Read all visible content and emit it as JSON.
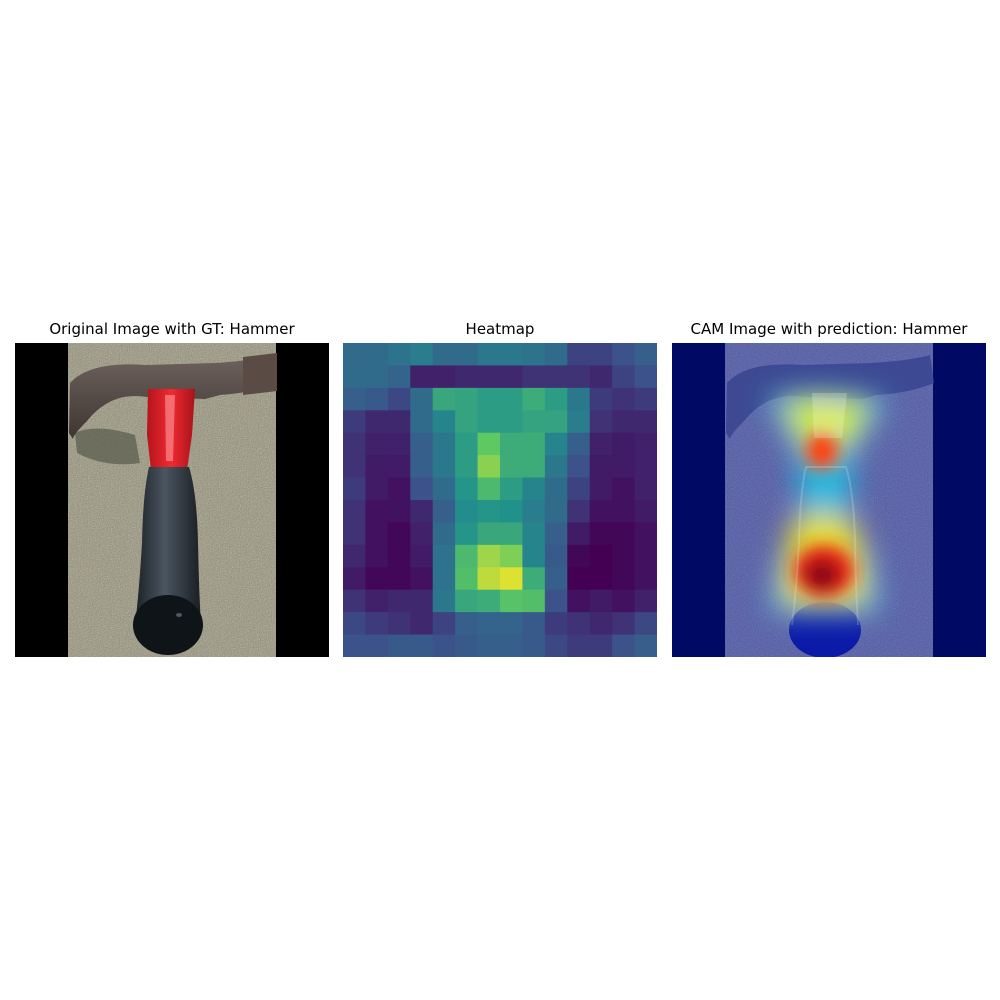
{
  "panels": [
    {
      "title": "Original Image with GT: Hammer"
    },
    {
      "title": "Heatmap"
    },
    {
      "title": "CAM Image with prediction: Hammer"
    }
  ],
  "heatmap": {
    "colormap": "viridis",
    "grid_size": 14,
    "values": [
      [
        0.35,
        0.35,
        0.38,
        0.42,
        0.35,
        0.35,
        0.4,
        0.4,
        0.38,
        0.35,
        0.2,
        0.2,
        0.25,
        0.3
      ],
      [
        0.35,
        0.35,
        0.32,
        0.1,
        0.1,
        0.12,
        0.12,
        0.12,
        0.15,
        0.15,
        0.15,
        0.12,
        0.2,
        0.25
      ],
      [
        0.3,
        0.28,
        0.22,
        0.35,
        0.6,
        0.58,
        0.55,
        0.55,
        0.62,
        0.55,
        0.4,
        0.18,
        0.15,
        0.18
      ],
      [
        0.18,
        0.12,
        0.12,
        0.35,
        0.45,
        0.58,
        0.55,
        0.55,
        0.58,
        0.58,
        0.42,
        0.15,
        0.12,
        0.12
      ],
      [
        0.15,
        0.1,
        0.1,
        0.3,
        0.4,
        0.55,
        0.75,
        0.62,
        0.62,
        0.45,
        0.3,
        0.1,
        0.08,
        0.1
      ],
      [
        0.15,
        0.08,
        0.08,
        0.3,
        0.4,
        0.55,
        0.82,
        0.62,
        0.62,
        0.4,
        0.25,
        0.08,
        0.08,
        0.1
      ],
      [
        0.18,
        0.08,
        0.05,
        0.25,
        0.35,
        0.52,
        0.68,
        0.55,
        0.45,
        0.35,
        0.2,
        0.08,
        0.05,
        0.1
      ],
      [
        0.15,
        0.05,
        0.05,
        0.12,
        0.3,
        0.48,
        0.52,
        0.5,
        0.42,
        0.35,
        0.15,
        0.05,
        0.05,
        0.08
      ],
      [
        0.15,
        0.05,
        0.02,
        0.1,
        0.35,
        0.52,
        0.6,
        0.6,
        0.45,
        0.3,
        0.08,
        0.02,
        0.02,
        0.05
      ],
      [
        0.12,
        0.05,
        0.02,
        0.08,
        0.38,
        0.68,
        0.85,
        0.8,
        0.45,
        0.28,
        0.02,
        0.0,
        0.02,
        0.05
      ],
      [
        0.08,
        0.02,
        0.02,
        0.05,
        0.38,
        0.7,
        0.9,
        0.95,
        0.62,
        0.3,
        0.0,
        0.0,
        0.02,
        0.05
      ],
      [
        0.15,
        0.1,
        0.12,
        0.12,
        0.4,
        0.6,
        0.62,
        0.72,
        0.7,
        0.25,
        0.05,
        0.08,
        0.05,
        0.1
      ],
      [
        0.22,
        0.18,
        0.15,
        0.12,
        0.2,
        0.3,
        0.32,
        0.32,
        0.28,
        0.18,
        0.15,
        0.12,
        0.15,
        0.22
      ],
      [
        0.25,
        0.25,
        0.28,
        0.28,
        0.25,
        0.28,
        0.3,
        0.3,
        0.28,
        0.22,
        0.18,
        0.18,
        0.25,
        0.3
      ]
    ]
  }
}
